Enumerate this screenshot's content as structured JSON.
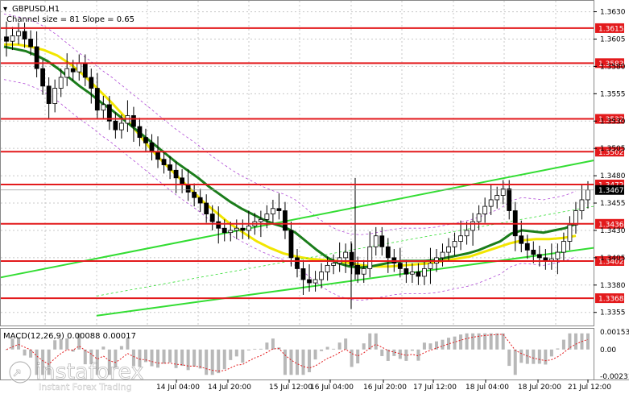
{
  "chart_data": {
    "type": "candlestick",
    "symbol_title": "GBPUSD,H1",
    "channel_text": "Channel size = 81 Slope = 0.65",
    "price_ticks": [
      "1.3630",
      "1.3605",
      "1.3580",
      "1.3555",
      "1.3530",
      "1.3505",
      "1.3480",
      "1.3455",
      "1.3430",
      "1.3405",
      "1.3380",
      "1.3355"
    ],
    "price_range": [
      1.3343,
      1.364
    ],
    "levels": [
      {
        "label": "1.3615",
        "value": 1.3615
      },
      {
        "label": "1.3583",
        "value": 1.3583
      },
      {
        "label": "1.3532",
        "value": 1.3532
      },
      {
        "label": "1.3502",
        "value": 1.3502
      },
      {
        "label": "1.3472",
        "value": 1.3472
      },
      {
        "label": "1.3436",
        "value": 1.3436
      },
      {
        "label": "1.3402",
        "value": 1.3402
      },
      {
        "label": "1.3368",
        "value": 1.3368
      }
    ],
    "current_price": {
      "label": "1.3467",
      "value": 1.3467
    },
    "level_color": "#e31a1c",
    "bullish_color": "#ffffff",
    "bearish_color": "#000000",
    "ma_fast_color": "#1b7d1b",
    "ma_slow_color": "#f2e600",
    "channel_color": "#33dd33",
    "time_labels": [
      "14 Jul 04:00",
      "14 Jul 20:00",
      "15 Jul 12:00",
      "16 Jul 04:00",
      "16 Jul 20:00",
      "17 Jul 12:00",
      "18 Jul 04:00",
      "18 Jul 20:00",
      "21 Jul 12:00"
    ],
    "macd": {
      "label": "MACD(12,26,9) 0.00088 0.00017",
      "ticks": [
        "0.00153",
        "0.00",
        "-0.00231"
      ],
      "range": [
        -0.0026,
        0.0018
      ]
    },
    "close_path": [
      1.3603,
      1.3608,
      1.3612,
      1.3605,
      1.3598,
      1.3578,
      1.3562,
      1.3546,
      1.356,
      1.357,
      1.3578,
      1.3575,
      1.3583,
      1.357,
      1.356,
      1.354,
      1.3545,
      1.353,
      1.3522,
      1.3528,
      1.3535,
      1.3525,
      1.3515,
      1.351,
      1.3502,
      1.3495,
      1.349,
      1.3485,
      1.3478,
      1.3472,
      1.3465,
      1.346,
      1.3455,
      1.3445,
      1.3438,
      1.3432,
      1.3428,
      1.343,
      1.3432,
      1.343,
      1.3434,
      1.3438,
      1.344,
      1.3445,
      1.345,
      1.3448,
      1.343,
      1.3405,
      1.3395,
      1.3385,
      1.3382,
      1.3385,
      1.3392,
      1.3398,
      1.34,
      1.3405,
      1.341,
      1.3398,
      1.339,
      1.3395,
      1.3415,
      1.3425,
      1.3415,
      1.3405,
      1.34,
      1.3395,
      1.339,
      1.3392,
      1.3388,
      1.3395,
      1.34,
      1.3405,
      1.341,
      1.3415,
      1.342,
      1.3425,
      1.343,
      1.3438,
      1.3445,
      1.3452,
      1.3458,
      1.3462,
      1.3468,
      1.3448,
      1.3425,
      1.3418,
      1.3412,
      1.3408,
      1.3405,
      1.3402,
      1.3404,
      1.341,
      1.342,
      1.3435,
      1.3448,
      1.3458,
      1.3467
    ],
    "ma_fast_path": [
      1.3598,
      1.3596,
      1.3594,
      1.359,
      1.3585,
      1.3578,
      1.357,
      1.3562,
      1.3555,
      1.3547,
      1.354,
      1.3532,
      1.3524,
      1.3516,
      1.3508,
      1.35,
      1.3492,
      1.3485,
      1.3478,
      1.347,
      1.3463,
      1.3456,
      1.345,
      1.3445,
      1.344,
      1.3436,
      1.3433,
      1.3428,
      1.342,
      1.3412,
      1.3405,
      1.34,
      1.3397,
      1.3396,
      1.3397,
      1.3399,
      1.3401,
      1.3402,
      1.3402,
      1.3402,
      1.3403,
      1.3405,
      1.3407,
      1.3409,
      1.3412,
      1.3416,
      1.342,
      1.3427,
      1.343,
      1.3429,
      1.3428,
      1.343,
      1.3432,
      1.3436
    ],
    "ma_slow_path": [
      1.36,
      1.36,
      1.3598,
      1.3595,
      1.359,
      1.3582,
      1.3572,
      1.356,
      1.3548,
      1.3535,
      1.352,
      1.3505,
      1.3492,
      1.348,
      1.3468,
      1.3456,
      1.3446,
      1.3436,
      1.3428,
      1.342,
      1.3414,
      1.3409,
      1.3406,
      1.3404,
      1.3403,
      1.3402,
      1.34,
      1.3398,
      1.3397,
      1.3397,
      1.3398,
      1.3399,
      1.34,
      1.3402,
      1.3404,
      1.3406,
      1.341,
      1.3414,
      1.3418,
      1.3421,
      1.3422,
      1.3422,
      1.3423,
      1.3425
    ]
  }
}
